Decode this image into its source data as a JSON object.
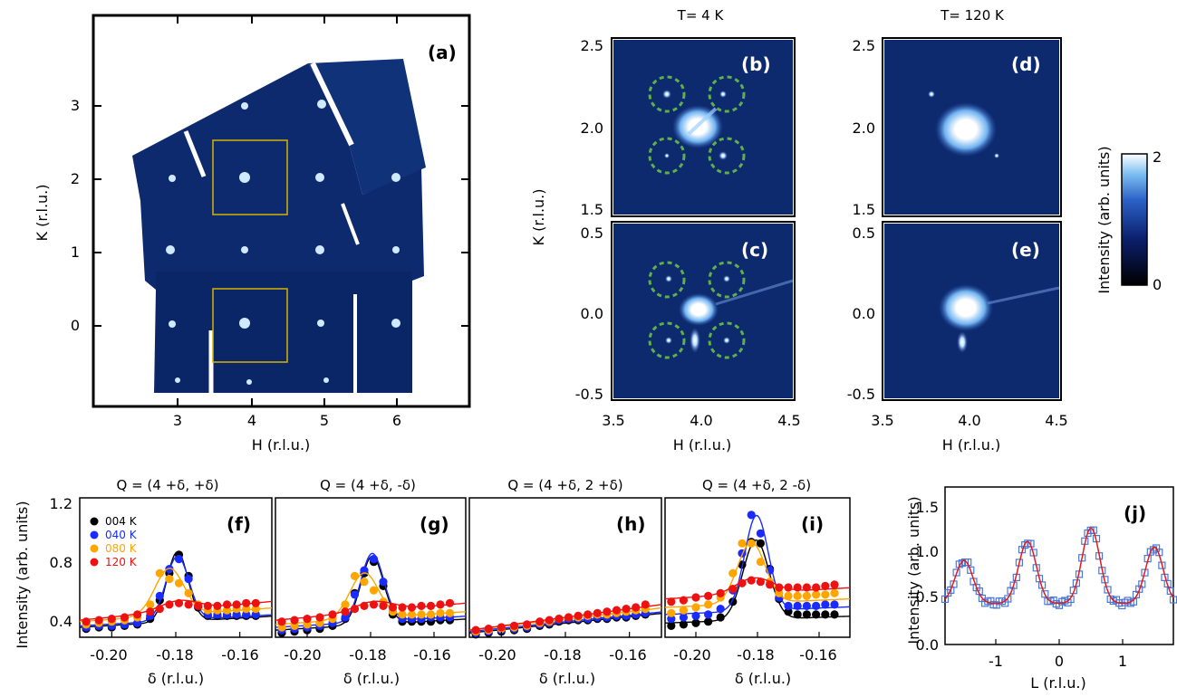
{
  "panel_a": {
    "label": "(a)",
    "xlabel": "H (r.l.u.)",
    "ylabel": "K (r.l.u.)",
    "xticks": [
      "3",
      "4",
      "5",
      "6"
    ],
    "yticks": [
      "3",
      "2",
      "1",
      "0"
    ]
  },
  "maps": {
    "title_left": "T= 4 K",
    "title_right": "T= 120 K",
    "ylabel": "K (r.l.u.)",
    "xlabel_left": "H (r.l.u.)",
    "xlabel_right": "H (r.l.u.)",
    "xticks": [
      "3.5",
      "4.0",
      "4.5"
    ],
    "yticks_top": [
      "2.5",
      "2.0",
      "1.5"
    ],
    "yticks_bottom": [
      "0.5",
      "0.0",
      "-0.5"
    ],
    "labels": {
      "b": "(b)",
      "c": "(c)",
      "d": "(d)",
      "e": "(e)"
    }
  },
  "colorbar": {
    "label": "Intensity (arb. units)",
    "max": "2",
    "min": "0"
  },
  "colors": {
    "map_bg": "#0d2a6e",
    "ring": "#5fb04a",
    "box": "#d4b300",
    "s004": "#000000",
    "s040": "#1a2bff",
    "s080": "#ffa500",
    "s120": "#ee1111",
    "j": "#4a78d8",
    "jfit": "#e41a1c"
  },
  "chart_data": [
    {
      "type": "line",
      "panel": "(f)",
      "title": "Q = (4 +δ, +δ)",
      "xlabel": "δ (r.l.u.)",
      "ylabel": "Intensity (arb. units)",
      "xlim": [
        -0.21,
        -0.15
      ],
      "ylim": [
        0.27,
        1.25
      ],
      "xticks": [
        "-0.20",
        "-0.18",
        "-0.16"
      ],
      "yticks": [
        "1.2",
        "0.8",
        "0.4"
      ],
      "legend": [
        "004 K",
        "040 K",
        "080 K",
        "120 K"
      ],
      "x": [
        -0.208,
        -0.204,
        -0.2,
        -0.196,
        -0.192,
        -0.188,
        -0.185,
        -0.182,
        -0.179,
        -0.176,
        -0.173,
        -0.17,
        -0.167,
        -0.164,
        -0.161,
        -0.158,
        -0.155
      ],
      "series": [
        {
          "name": "004 K",
          "color": "s004",
          "values": [
            0.33,
            0.34,
            0.34,
            0.35,
            0.36,
            0.4,
            0.53,
            0.72,
            0.85,
            0.7,
            0.48,
            0.42,
            0.42,
            0.42,
            0.42,
            0.42,
            0.42
          ],
          "fit": {
            "base": 0.34,
            "slope": 1.3,
            "amp": 0.49,
            "center": -0.1795,
            "sigma": 0.0033
          }
        },
        {
          "name": "040 K",
          "color": "s040",
          "values": [
            0.34,
            0.35,
            0.35,
            0.36,
            0.37,
            0.42,
            0.56,
            0.75,
            0.82,
            0.68,
            0.49,
            0.43,
            0.43,
            0.43,
            0.43,
            0.43,
            0.43
          ],
          "fit": {
            "base": 0.35,
            "slope": 1.3,
            "amp": 0.45,
            "center": -0.1795,
            "sigma": 0.0036
          }
        },
        {
          "name": "080 K",
          "color": "s080",
          "values": [
            0.36,
            0.37,
            0.38,
            0.39,
            0.41,
            0.5,
            0.72,
            0.68,
            0.65,
            0.58,
            0.5,
            0.46,
            0.46,
            0.46,
            0.47,
            0.47,
            0.47
          ],
          "fit": {
            "base": 0.38,
            "slope": 1.6,
            "amp": 0.33,
            "center": -0.182,
            "sigma": 0.0045
          }
        },
        {
          "name": "120 K",
          "color": "s120",
          "values": [
            0.38,
            0.39,
            0.4,
            0.41,
            0.43,
            0.45,
            0.47,
            0.5,
            0.51,
            0.5,
            0.49,
            0.49,
            0.49,
            0.5,
            0.5,
            0.51,
            0.51
          ],
          "fit": {
            "base": 0.39,
            "slope": 2.2,
            "amp": 0.07,
            "center": -0.179,
            "sigma": 0.006
          }
        }
      ]
    },
    {
      "type": "line",
      "panel": "(g)",
      "title": "Q = (4 +δ, -δ)",
      "xlabel": "δ (r.l.u.)",
      "xlim": [
        -0.21,
        -0.15
      ],
      "ylim": [
        0.27,
        1.25
      ],
      "xticks": [
        "-0.20",
        "-0.18",
        "-0.16"
      ],
      "x": [
        -0.208,
        -0.204,
        -0.2,
        -0.196,
        -0.192,
        -0.188,
        -0.185,
        -0.182,
        -0.179,
        -0.176,
        -0.173,
        -0.17,
        -0.167,
        -0.164,
        -0.161,
        -0.158,
        -0.155
      ],
      "series": [
        {
          "name": "004 K",
          "color": "s004",
          "values": [
            0.3,
            0.31,
            0.32,
            0.33,
            0.35,
            0.4,
            0.58,
            0.72,
            0.8,
            0.63,
            0.43,
            0.38,
            0.38,
            0.38,
            0.38,
            0.39,
            0.39
          ],
          "fit": {
            "base": 0.32,
            "slope": 1.3,
            "amp": 0.48,
            "center": -0.1795,
            "sigma": 0.0036
          }
        },
        {
          "name": "040 K",
          "color": "s040",
          "values": [
            0.32,
            0.33,
            0.34,
            0.35,
            0.37,
            0.41,
            0.57,
            0.74,
            0.82,
            0.66,
            0.45,
            0.4,
            0.4,
            0.4,
            0.41,
            0.41,
            0.41
          ],
          "fit": {
            "base": 0.34,
            "slope": 1.3,
            "amp": 0.48,
            "center": -0.1795,
            "sigma": 0.0036
          }
        },
        {
          "name": "080 K",
          "color": "s080",
          "values": [
            0.34,
            0.35,
            0.36,
            0.37,
            0.4,
            0.5,
            0.7,
            0.66,
            0.6,
            0.52,
            0.45,
            0.43,
            0.43,
            0.43,
            0.43,
            0.44,
            0.44
          ],
          "fit": {
            "base": 0.36,
            "slope": 1.5,
            "amp": 0.32,
            "center": -0.182,
            "sigma": 0.0045
          }
        },
        {
          "name": "120 K",
          "color": "s120",
          "values": [
            0.38,
            0.39,
            0.4,
            0.41,
            0.43,
            0.45,
            0.47,
            0.49,
            0.5,
            0.49,
            0.48,
            0.48,
            0.48,
            0.49,
            0.49,
            0.5,
            0.51
          ],
          "fit": {
            "base": 0.39,
            "slope": 2.0,
            "amp": 0.07,
            "center": -0.179,
            "sigma": 0.006
          }
        }
      ]
    },
    {
      "type": "line",
      "panel": "(h)",
      "title": "Q = (4 +δ, 2 +δ)",
      "xlabel": "δ (r.l.u.)",
      "xlim": [
        -0.21,
        -0.15
      ],
      "ylim": [
        0.27,
        1.25
      ],
      "xticks": [
        "-0.20",
        "-0.18",
        "-0.16"
      ],
      "x": [
        -0.208,
        -0.204,
        -0.2,
        -0.196,
        -0.192,
        -0.188,
        -0.185,
        -0.182,
        -0.179,
        -0.176,
        -0.173,
        -0.17,
        -0.167,
        -0.164,
        -0.161,
        -0.158,
        -0.155
      ],
      "series": [
        {
          "name": "004 K",
          "color": "s004",
          "values": [
            0.29,
            0.3,
            0.31,
            0.32,
            0.33,
            0.35,
            0.36,
            0.38,
            0.39,
            0.39,
            0.39,
            0.4,
            0.4,
            0.41,
            0.41,
            0.42,
            0.43
          ],
          "fit": {
            "base": 0.3,
            "slope": 2.3,
            "amp": 0,
            "center": -0.18,
            "sigma": 0.004
          }
        },
        {
          "name": "040 K",
          "color": "s040",
          "values": [
            0.3,
            0.31,
            0.32,
            0.33,
            0.34,
            0.36,
            0.37,
            0.39,
            0.4,
            0.4,
            0.4,
            0.41,
            0.41,
            0.42,
            0.42,
            0.43,
            0.44
          ],
          "fit": {
            "base": 0.31,
            "slope": 2.3,
            "amp": 0,
            "center": -0.18,
            "sigma": 0.004
          }
        },
        {
          "name": "080 K",
          "color": "s080",
          "values": [
            0.31,
            0.32,
            0.33,
            0.34,
            0.35,
            0.37,
            0.38,
            0.4,
            0.41,
            0.41,
            0.42,
            0.43,
            0.43,
            0.44,
            0.45,
            0.46,
            0.47
          ],
          "fit": {
            "base": 0.32,
            "slope": 2.6,
            "amp": 0,
            "center": -0.18,
            "sigma": 0.004
          }
        },
        {
          "name": "120 K",
          "color": "s120",
          "values": [
            0.32,
            0.33,
            0.34,
            0.35,
            0.36,
            0.38,
            0.39,
            0.4,
            0.41,
            0.42,
            0.43,
            0.44,
            0.45,
            0.46,
            0.47,
            0.48,
            0.5
          ],
          "fit": {
            "base": 0.32,
            "slope": 3.0,
            "amp": 0,
            "center": -0.18,
            "sigma": 0.004
          }
        }
      ]
    },
    {
      "type": "line",
      "panel": "(i)",
      "title": "Q = (4 +δ, 2 -δ)",
      "xlabel": "δ (r.l.u.)",
      "xlim": [
        -0.21,
        -0.15
      ],
      "ylim": [
        0.27,
        1.25
      ],
      "xticks": [
        "-0.20",
        "-0.18",
        "-0.16"
      ],
      "x": [
        -0.208,
        -0.204,
        -0.2,
        -0.196,
        -0.192,
        -0.188,
        -0.185,
        -0.182,
        -0.179,
        -0.176,
        -0.173,
        -0.17,
        -0.167,
        -0.164,
        -0.161,
        -0.158,
        -0.155
      ],
      "series": [
        {
          "name": "004 K",
          "color": "s004",
          "values": [
            0.35,
            0.36,
            0.37,
            0.38,
            0.41,
            0.52,
            0.78,
            0.94,
            0.93,
            0.75,
            0.54,
            0.45,
            0.43,
            0.43,
            0.43,
            0.43,
            0.43
          ],
          "fit": {
            "base": 0.37,
            "slope": 0.8,
            "amp": 0.56,
            "center": -0.1805,
            "sigma": 0.0042
          }
        },
        {
          "name": "040 K",
          "color": "s040",
          "values": [
            0.4,
            0.41,
            0.42,
            0.43,
            0.47,
            0.6,
            0.86,
            1.13,
            1.0,
            0.74,
            0.55,
            0.49,
            0.49,
            0.49,
            0.49,
            0.5,
            0.5
          ],
          "fit": {
            "base": 0.43,
            "slope": 0.9,
            "amp": 0.67,
            "center": -0.1803,
            "sigma": 0.0038
          }
        },
        {
          "name": "080 K",
          "color": "s080",
          "values": [
            0.44,
            0.46,
            0.48,
            0.5,
            0.55,
            0.72,
            0.93,
            0.93,
            0.8,
            0.66,
            0.58,
            0.56,
            0.56,
            0.56,
            0.57,
            0.57,
            0.58
          ],
          "fit": {
            "base": 0.48,
            "slope": 1.0,
            "amp": 0.43,
            "center": -0.182,
            "sigma": 0.0045
          }
        },
        {
          "name": "120 K",
          "color": "s120",
          "values": [
            0.52,
            0.53,
            0.55,
            0.56,
            0.58,
            0.61,
            0.65,
            0.67,
            0.66,
            0.64,
            0.62,
            0.62,
            0.62,
            0.62,
            0.62,
            0.63,
            0.64
          ],
          "fit": {
            "base": 0.54,
            "slope": 1.3,
            "amp": 0.11,
            "center": -0.181,
            "sigma": 0.006
          }
        }
      ]
    },
    {
      "type": "scatter",
      "panel": "(j)",
      "xlabel": "L (r.l.u.)",
      "ylabel": "Intensity (arb. units)",
      "xlim": [
        -1.8,
        1.8
      ],
      "ylim": [
        0,
        1.65
      ],
      "xticks": [
        "-1",
        "0",
        "1"
      ],
      "yticks": [
        "1.5",
        "1.0",
        "0.5",
        "0.0"
      ],
      "peaks": [
        -1.5,
        -0.5,
        0.5,
        1.5
      ],
      "peak_heights": [
        0.88,
        1.08,
        1.22,
        1.02
      ],
      "baseline": 0.43,
      "sigma": 0.14,
      "x_start": -1.8,
      "x_step": 0.045,
      "n_points": 81
    }
  ]
}
